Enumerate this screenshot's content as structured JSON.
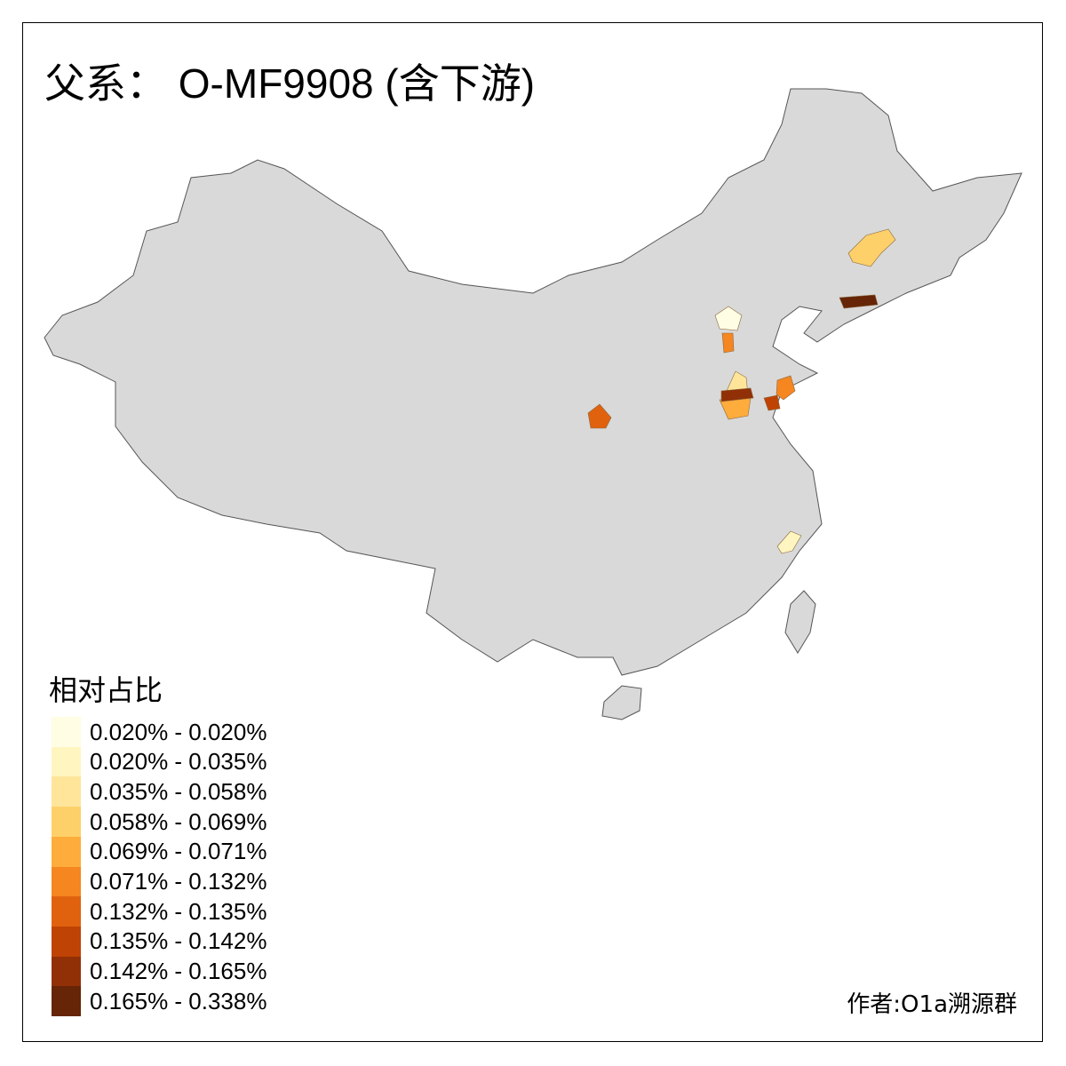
{
  "title": "父系： O-MF9908 (含下游)",
  "legend": {
    "title": "相对占比",
    "items": [
      {
        "label": "0.020% - 0.020%",
        "color": "#FFFDE3"
      },
      {
        "label": "0.020% - 0.035%",
        "color": "#FFF5C0"
      },
      {
        "label": "0.035% - 0.058%",
        "color": "#FEE59A"
      },
      {
        "label": "0.058% - 0.069%",
        "color": "#FED06A"
      },
      {
        "label": "0.069% - 0.071%",
        "color": "#FEAC3B"
      },
      {
        "label": "0.071% - 0.132%",
        "color": "#F6861F"
      },
      {
        "label": "0.132% - 0.135%",
        "color": "#E0620F"
      },
      {
        "label": "0.135% - 0.142%",
        "color": "#BF4304"
      },
      {
        "label": "0.142% - 0.165%",
        "color": "#913007"
      },
      {
        "label": "0.165% - 0.338%",
        "color": "#662506"
      }
    ]
  },
  "credit": "作者:O1a溯源群",
  "map": {
    "base_color": "#D9D9D9",
    "border_color": "#555555"
  }
}
